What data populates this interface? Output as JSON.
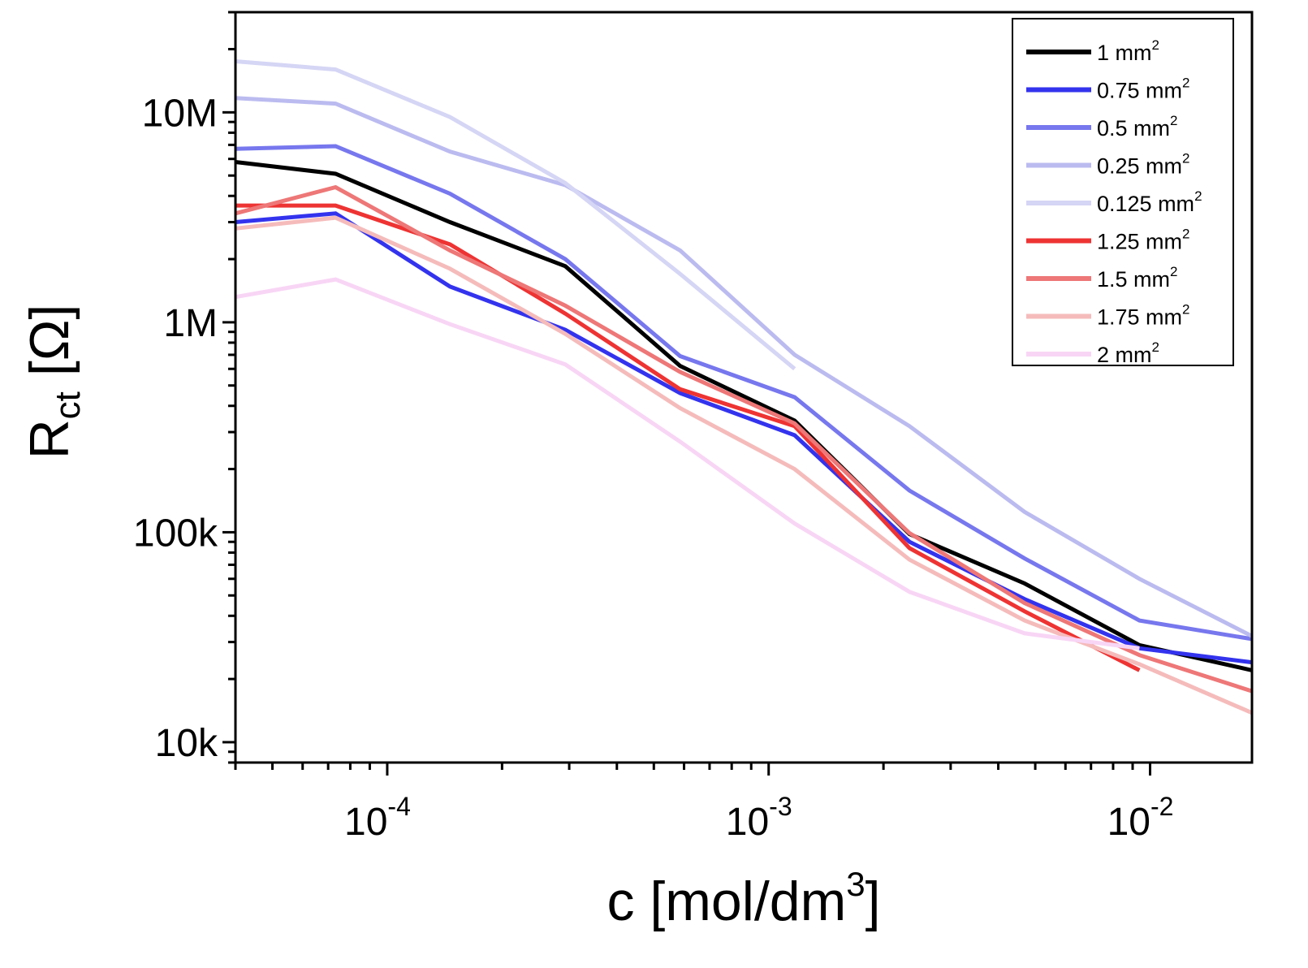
{
  "chart_data": {
    "type": "line",
    "xlabel": "c [mol/dm",
    "xlabel_sup": "3",
    "xlabel_tail": "]",
    "ylabel": "R",
    "ylabel_sub": "ct",
    "ylabel_tail": " [Ω]",
    "xscale": "log",
    "yscale": "log",
    "xlim": [
      4e-05,
      0.0185
    ],
    "ylim": [
      8000,
      30000000
    ],
    "grid": false,
    "legend_position": "top-right",
    "x_ticks": [
      {
        "value": 0.0001,
        "base": "10",
        "exp": "-4"
      },
      {
        "value": 0.001,
        "base": "10",
        "exp": "-3"
      },
      {
        "value": 0.01,
        "base": "10",
        "exp": "-2"
      }
    ],
    "y_ticks": [
      {
        "value": 10000,
        "label": "10k"
      },
      {
        "value": 100000,
        "label": "100k"
      },
      {
        "value": 1000000,
        "label": "1M"
      },
      {
        "value": 10000000,
        "label": "10M"
      }
    ],
    "series": [
      {
        "name": "1 mm",
        "sup": "2",
        "color": "#000000",
        "x": [
          4e-05,
          7.32e-05,
          0.000146,
          0.000293,
          0.000586,
          0.00117,
          0.00234,
          0.00469,
          0.00938,
          0.0185
        ],
        "y": [
          5800000,
          5100000,
          3000000,
          1850000,
          620000,
          340000,
          98000,
          57000,
          29000,
          22000
        ]
      },
      {
        "name": "0.75 mm",
        "sup": "2",
        "color": "#3333ee",
        "x": [
          4e-05,
          7.32e-05,
          0.000146,
          0.000293,
          0.000586,
          0.00117,
          0.00234,
          0.00469,
          0.00938,
          0.0185
        ],
        "y": [
          3000000,
          3300000,
          1480000,
          920000,
          460000,
          290000,
          90000,
          48000,
          28000,
          24000
        ]
      },
      {
        "name": "0.5 mm",
        "sup": "2",
        "color": "#7777ee",
        "x": [
          4e-05,
          7.32e-05,
          0.000146,
          0.000293,
          0.000586,
          0.00117,
          0.00234,
          0.00469,
          0.00938,
          0.0185
        ],
        "y": [
          6700000,
          6900000,
          4100000,
          2000000,
          690000,
          440000,
          158000,
          75000,
          38000,
          31000
        ]
      },
      {
        "name": "0.25 mm",
        "sup": "2",
        "color": "#bbbbf0",
        "x": [
          4e-05,
          7.32e-05,
          0.000146,
          0.000293,
          0.000586,
          0.00117,
          0.00234,
          0.00469,
          0.00938,
          0.0185
        ],
        "y": [
          11700000,
          11000000,
          6500000,
          4500000,
          2200000,
          700000,
          320000,
          125000,
          60000,
          32000
        ]
      },
      {
        "name": "0.125 mm",
        "sup": "2",
        "color": "#d5d5f5",
        "x": [
          4e-05,
          7.32e-05,
          0.000146,
          0.000293,
          0.000586,
          0.00117
        ],
        "y": [
          17500000,
          16000000,
          9500000,
          4600000,
          1700000,
          600000
        ]
      },
      {
        "name": "1.25 mm",
        "sup": "2",
        "color": "#ee3333",
        "x": [
          4e-05,
          7.32e-05,
          0.000146,
          0.000293,
          0.000586,
          0.00117,
          0.00234,
          0.00469,
          0.00938
        ],
        "y": [
          3600000,
          3600000,
          2350000,
          1100000,
          480000,
          320000,
          84000,
          42000,
          22000
        ]
      },
      {
        "name": "1.5 mm",
        "sup": "2",
        "color": "#ee7777",
        "x": [
          4e-05,
          7.32e-05,
          0.000146,
          0.000293,
          0.000586,
          0.00117,
          0.00234,
          0.00469,
          0.00938,
          0.0185
        ],
        "y": [
          3300000,
          4400000,
          2200000,
          1200000,
          580000,
          330000,
          99000,
          46000,
          26000,
          17500
        ]
      },
      {
        "name": "1.75 mm",
        "sup": "2",
        "color": "#f5bbbb",
        "x": [
          4e-05,
          7.32e-05,
          0.000146,
          0.000293,
          0.000586,
          0.00117,
          0.00234,
          0.00469,
          0.00938,
          0.0185
        ],
        "y": [
          2800000,
          3150000,
          1800000,
          880000,
          390000,
          200000,
          74000,
          38000,
          23500,
          13800
        ]
      },
      {
        "name": "2 mm",
        "sup": "2",
        "color": "#f8d5f5",
        "x": [
          4e-05,
          7.32e-05,
          0.000146,
          0.000293,
          0.000586,
          0.00117,
          0.00234,
          0.00469,
          0.00938
        ],
        "y": [
          1320000,
          1600000,
          980000,
          630000,
          270000,
          110000,
          52000,
          33000,
          28000
        ]
      }
    ]
  }
}
